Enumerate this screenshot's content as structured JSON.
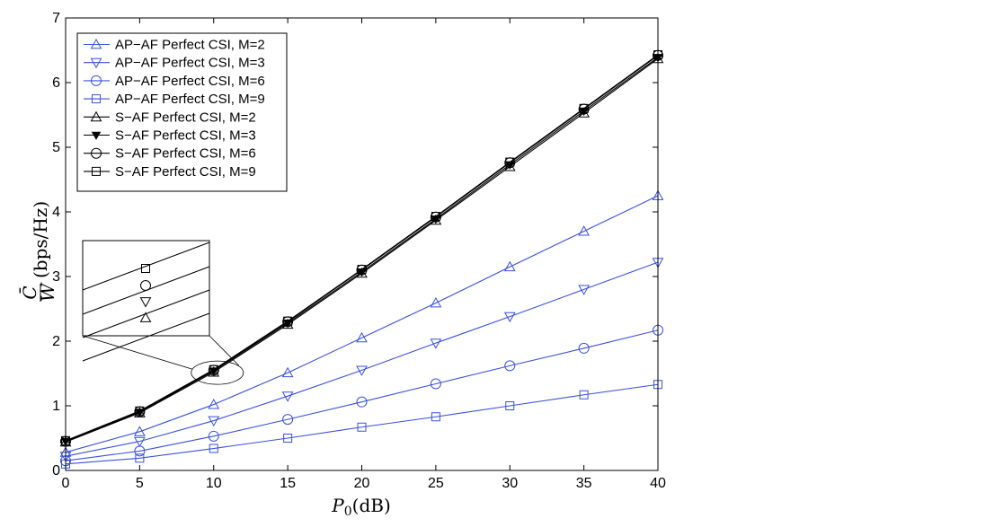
{
  "chart_data": {
    "type": "line",
    "title": "",
    "x_axis": {
      "label_main": "P",
      "label_sub": "0",
      "label_unit": "(dB)",
      "range": [
        0,
        40
      ],
      "ticks": [
        0,
        5,
        10,
        15,
        20,
        25,
        30,
        35,
        40
      ]
    },
    "y_axis": {
      "label_numerator": "C̄",
      "label_denominator": "W",
      "label_unit": "(bps/Hz)",
      "range": [
        0,
        7
      ],
      "ticks": [
        0,
        1,
        2,
        3,
        4,
        5,
        6,
        7
      ]
    },
    "grid": false,
    "legend_position": "top-left",
    "x": [
      0,
      5,
      10,
      15,
      20,
      25,
      30,
      35,
      40
    ],
    "series": [
      {
        "name": "AP−AF Perfect CSI, M=2",
        "color": "#3a50e0",
        "marker": "triangle-up",
        "values": [
          0.28,
          0.6,
          1.02,
          1.51,
          2.05,
          2.59,
          3.15,
          3.7,
          4.25
        ]
      },
      {
        "name": "AP−AF Perfect CSI, M=3",
        "color": "#3a50e0",
        "marker": "triangle-down",
        "values": [
          0.22,
          0.45,
          0.77,
          1.15,
          1.55,
          1.97,
          2.38,
          2.8,
          3.22
        ]
      },
      {
        "name": "AP−AF Perfect CSI, M=6",
        "color": "#3a50e0",
        "marker": "circle",
        "values": [
          0.15,
          0.3,
          0.53,
          0.79,
          1.06,
          1.34,
          1.62,
          1.89,
          2.17
        ]
      },
      {
        "name": "AP−AF Perfect CSI, M=9",
        "color": "#3a50e0",
        "marker": "square",
        "values": [
          0.1,
          0.19,
          0.34,
          0.5,
          0.67,
          0.83,
          1.0,
          1.17,
          1.33
        ]
      },
      {
        "name": "S−AF Perfect CSI, M=2",
        "color": "#000000",
        "marker": "triangle-up",
        "values": [
          0.44,
          0.89,
          1.52,
          2.26,
          3.05,
          3.87,
          4.7,
          5.53,
          6.37
        ]
      },
      {
        "name": "S−AF Perfect CSI, M=3",
        "color": "#000000",
        "marker": "triangle-down-filled",
        "values": [
          0.45,
          0.9,
          1.54,
          2.28,
          3.07,
          3.89,
          4.73,
          5.56,
          6.39
        ]
      },
      {
        "name": "S−AF Perfect CSI, M=6",
        "color": "#000000",
        "marker": "circle",
        "values": [
          0.45,
          0.91,
          1.55,
          2.3,
          3.1,
          3.92,
          4.76,
          5.59,
          6.42
        ]
      },
      {
        "name": "S−AF Perfect CSI, M=9",
        "color": "#000000",
        "marker": "square",
        "values": [
          0.46,
          0.92,
          1.56,
          2.31,
          3.11,
          3.93,
          4.77,
          5.6,
          6.43
        ]
      }
    ],
    "inset": {
      "zoom_center": [
        10,
        1.54
      ],
      "marker_order": [
        "square",
        "circle",
        "triangle-down",
        "triangle-up"
      ]
    }
  }
}
